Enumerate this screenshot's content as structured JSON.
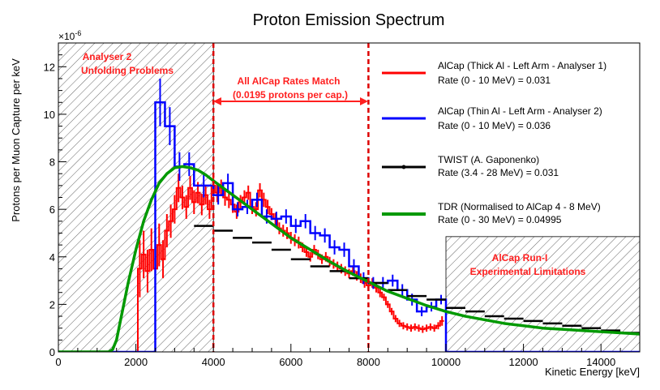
{
  "chart_data": {
    "type": "line",
    "title": "Proton Emission Spectrum",
    "xlabel": "Kinetic Energy [keV]",
    "ylabel": "Protons per Muon Capture per keV",
    "y_multiplier": "×10",
    "y_multiplier_exp": "-6",
    "xlim": [
      0,
      15000
    ],
    "ylim": [
      0,
      13
    ],
    "x_ticks": [
      0,
      2000,
      4000,
      6000,
      8000,
      10000,
      12000,
      14000
    ],
    "y_ticks": [
      0,
      2,
      4,
      6,
      8,
      10,
      12
    ],
    "grid": false,
    "legend_placement": "top-right",
    "annotations": {
      "unfolding_line1": "Analyser 2",
      "unfolding_line2": "Unfolding Problems",
      "rates_match_line1": "All AlCap Rates Match",
      "rates_match_line2": "(0.0195 protons per cap.)",
      "run1_line1": "AlCap Run-I",
      "run1_line2": "Experimental Limitations"
    },
    "shaded_regions": [
      {
        "x": [
          0,
          4000
        ],
        "y": [
          0,
          13
        ]
      },
      {
        "x": [
          10000,
          15000
        ],
        "y": [
          0,
          4.85
        ]
      }
    ],
    "vertical_lines": [
      4000,
      8000
    ],
    "series": [
      {
        "name": "AlCap (Thick Al - Left Arm - Analyser 1)",
        "rate": "Rate (0 - 10 MeV) = 0.031",
        "color": "#ff0000",
        "style": "hist",
        "bin_width": 100,
        "x": [
          2100,
          2200,
          2300,
          2400,
          2500,
          2600,
          2700,
          2800,
          2900,
          3000,
          3100,
          3200,
          3300,
          3400,
          3500,
          3600,
          3700,
          3800,
          3900,
          4000,
          4100,
          4200,
          4300,
          4400,
          4500,
          4600,
          4700,
          4800,
          4900,
          5000,
          5100,
          5200,
          5300,
          5400,
          5500,
          5600,
          5700,
          5800,
          5900,
          6000,
          6100,
          6200,
          6300,
          6400,
          6500,
          6600,
          6700,
          6800,
          6900,
          7000,
          7100,
          7200,
          7300,
          7400,
          7500,
          7600,
          7700,
          7800,
          7900,
          8000,
          8100,
          8200,
          8300,
          8400,
          8500,
          8600,
          8700,
          8800,
          8900,
          9000,
          9100,
          9200,
          9300,
          9400,
          9500,
          9600,
          9700,
          9800,
          9900
        ],
        "values": [
          3.5,
          4.1,
          3.4,
          4.3,
          3.5,
          4.5,
          3.9,
          5.1,
          5.5,
          6.0,
          6.9,
          6.5,
          6.1,
          6.9,
          6.3,
          6.7,
          6.2,
          6.6,
          6.0,
          7.0,
          6.7,
          6.9,
          6.5,
          6.4,
          6.2,
          5.9,
          6.3,
          6.5,
          6.7,
          6.1,
          6.0,
          6.8,
          6.4,
          6.1,
          5.8,
          5.6,
          5.2,
          5.1,
          5.0,
          4.8,
          4.7,
          4.6,
          4.4,
          4.2,
          4.0,
          4.3,
          4.1,
          3.9,
          4.0,
          3.8,
          3.7,
          3.6,
          3.5,
          3.4,
          3.3,
          3.4,
          3.2,
          3.1,
          2.9,
          2.8,
          2.9,
          2.7,
          2.5,
          2.3,
          2.0,
          1.7,
          1.4,
          1.2,
          1.1,
          1.05,
          1.0,
          1.05,
          1.0,
          0.95,
          1.0,
          1.05,
          1.0,
          1.1,
          1.3
        ],
        "errors": [
          1.2,
          1.0,
          0.9,
          0.9,
          0.8,
          0.9,
          0.8,
          0.7,
          0.7,
          0.6,
          0.6,
          0.5,
          0.5,
          0.5,
          0.5,
          0.45,
          0.45,
          0.4,
          0.4,
          0.4,
          0.4,
          0.35,
          0.35,
          0.35,
          0.35,
          0.3,
          0.3,
          0.3,
          0.3,
          0.3,
          0.3,
          0.3,
          0.3,
          0.3,
          0.25,
          0.25,
          0.25,
          0.25,
          0.25,
          0.25,
          0.25,
          0.25,
          0.2,
          0.2,
          0.2,
          0.2,
          0.2,
          0.2,
          0.2,
          0.2,
          0.2,
          0.2,
          0.2,
          0.2,
          0.2,
          0.2,
          0.2,
          0.2,
          0.2,
          0.2,
          0.2,
          0.2,
          0.2,
          0.15,
          0.15,
          0.15,
          0.15,
          0.15,
          0.15,
          0.15,
          0.15,
          0.15,
          0.15,
          0.15,
          0.15,
          0.15,
          0.15,
          0.15,
          0.2
        ]
      },
      {
        "name": "AlCap (Thin Al - Left Arm - Analyser 2)",
        "rate": "Rate (0 - 10 MeV) = 0.036",
        "color": "#0000ff",
        "style": "step",
        "edges": [
          0,
          2500,
          2750,
          3000,
          3250,
          3500,
          4000,
          4250,
          4500,
          4750,
          5000,
          5250,
          5500,
          5750,
          6000,
          6250,
          6500,
          6750,
          7000,
          7250,
          7500,
          7750,
          8000,
          8250,
          8500,
          8750,
          9000,
          9250,
          9500,
          9750,
          10000,
          15000
        ],
        "values": [
          0,
          10.5,
          9.5,
          7.8,
          7.9,
          7.0,
          6.6,
          7.1,
          6.0,
          6.1,
          6.4,
          5.7,
          5.6,
          5.7,
          5.3,
          5.5,
          5.0,
          4.9,
          4.4,
          4.3,
          3.6,
          3.1,
          2.9,
          2.9,
          3.0,
          2.6,
          2.2,
          1.7,
          1.9,
          2.2,
          0
        ],
        "errors": [
          0,
          1.0,
          0.8,
          0.6,
          0.5,
          0.5,
          0.4,
          0.4,
          0.3,
          0.3,
          0.3,
          0.3,
          0.3,
          0.3,
          0.3,
          0.3,
          0.3,
          0.3,
          0.3,
          0.3,
          0.3,
          0.25,
          0.25,
          0.25,
          0.25,
          0.25,
          0.25,
          0.2,
          0.2,
          0.2,
          0
        ]
      },
      {
        "name": "TWIST (A. Gaponenko)",
        "rate": "Rate (3.4 - 28 MeV) = 0.031",
        "color": "#000000",
        "style": "points",
        "half_width": 250,
        "x": [
          3750,
          4250,
          4750,
          5250,
          5750,
          6250,
          6750,
          7250,
          7750,
          8250,
          8750,
          9250,
          9750,
          10250,
          10750,
          11250,
          11750,
          12250,
          12750,
          13250,
          13750,
          14250,
          14750
        ],
        "values": [
          5.3,
          5.1,
          4.8,
          4.6,
          4.3,
          3.9,
          3.6,
          3.4,
          3.1,
          2.9,
          2.6,
          2.35,
          2.2,
          1.85,
          1.7,
          1.5,
          1.4,
          1.3,
          1.2,
          1.1,
          1.0,
          0.9,
          0.8
        ]
      },
      {
        "name": "TDR (Normalised to AlCap 4 - 8 MeV)",
        "rate": "Rate (0 - 30 MeV) = 0.04995",
        "color": "#009900",
        "style": "curve",
        "x": [
          0,
          1300,
          1400,
          1500,
          1600,
          1800,
          2000,
          2200,
          2400,
          2600,
          2800,
          3000,
          3200,
          3400,
          3600,
          3800,
          4000,
          4500,
          5000,
          5500,
          6000,
          6500,
          7000,
          7500,
          8000,
          8500,
          9000,
          9500,
          10000,
          10500,
          11000,
          11500,
          12000,
          12500,
          13000,
          13500,
          14000,
          14500,
          15000
        ],
        "values": [
          0,
          0,
          0.1,
          0.5,
          1.3,
          2.9,
          4.3,
          5.5,
          6.4,
          7.1,
          7.5,
          7.75,
          7.8,
          7.75,
          7.65,
          7.45,
          7.2,
          6.6,
          6.0,
          5.4,
          4.8,
          4.3,
          3.8,
          3.35,
          2.95,
          2.55,
          2.25,
          1.95,
          1.7,
          1.5,
          1.35,
          1.2,
          1.1,
          1.0,
          0.95,
          0.9,
          0.85,
          0.8,
          0.75
        ]
      }
    ]
  }
}
